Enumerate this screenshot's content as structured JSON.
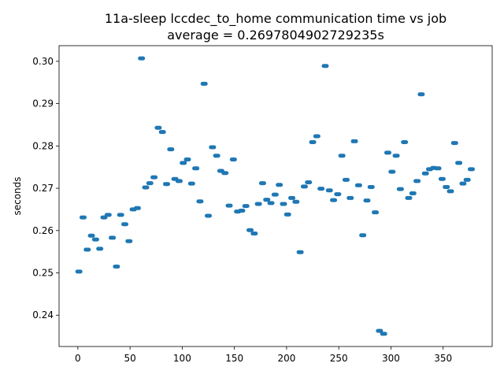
{
  "chart_data": {
    "type": "scatter",
    "title": "11a-sleep lccdec_to_home communication time vs job",
    "subtitle": "average = 0.2697804902729235s",
    "xlabel": "",
    "ylabel": "seconds",
    "xlim": [
      -18,
      397
    ],
    "ylim": [
      0.2326,
      0.3037
    ],
    "xticks": [
      0,
      50,
      100,
      150,
      200,
      250,
      300,
      350
    ],
    "yticks": [
      0.24,
      0.25,
      0.26,
      0.27,
      0.28,
      0.29,
      0.3
    ],
    "ytick_labels": [
      "0.24",
      "0.25",
      "0.26",
      "0.27",
      "0.28",
      "0.29",
      "0.30"
    ],
    "grid": false,
    "marker_color": "#1f77b4",
    "series": [
      {
        "x": [
          1,
          5,
          9,
          13,
          17,
          21,
          25,
          29,
          33,
          37,
          41,
          45,
          49,
          53,
          57,
          61,
          65,
          69,
          73,
          77,
          81,
          85,
          89,
          93,
          97,
          101,
          105,
          109,
          113,
          117,
          121,
          125,
          129,
          133,
          137,
          141,
          145,
          149,
          153,
          157,
          161,
          165,
          169,
          173,
          177,
          181,
          185,
          189,
          193,
          197,
          201,
          205,
          209,
          213,
          217,
          221,
          225,
          229,
          233,
          237,
          241,
          245,
          249,
          253,
          257,
          261,
          265,
          269,
          273,
          277,
          281,
          285,
          289,
          293,
          297,
          301,
          305,
          309,
          313,
          317,
          321,
          325,
          329,
          333,
          337,
          341,
          345,
          349,
          353,
          357,
          361,
          365,
          369,
          373,
          377
        ],
        "y": [
          0.2503,
          0.2631,
          0.2555,
          0.2588,
          0.2579,
          0.2557,
          0.2631,
          0.2637,
          0.2583,
          0.2515,
          0.2637,
          0.2615,
          0.2575,
          0.265,
          0.2653,
          0.3007,
          0.2702,
          0.2712,
          0.2726,
          0.2843,
          0.2833,
          0.271,
          0.2792,
          0.2722,
          0.2717,
          0.276,
          0.2768,
          0.2711,
          0.2747,
          0.2669,
          0.2947,
          0.2635,
          0.2797,
          0.2777,
          0.2741,
          0.2736,
          0.2659,
          0.2768,
          0.2645,
          0.2647,
          0.2658,
          0.2601,
          0.2593,
          0.2663,
          0.2712,
          0.2673,
          0.2665,
          0.2685,
          0.2708,
          0.2663,
          0.2638,
          0.2677,
          0.2668,
          0.2549,
          0.2704,
          0.2714,
          0.2809,
          0.2823,
          0.2699,
          0.2989,
          0.2695,
          0.2672,
          0.2686,
          0.2777,
          0.272,
          0.2677,
          0.2811,
          0.2707,
          0.2589,
          0.2671,
          0.2703,
          0.2643,
          0.2363,
          0.2356,
          0.2784,
          0.2739,
          0.2777,
          0.2698,
          0.2809,
          0.2677,
          0.2688,
          0.2717,
          0.2922,
          0.2735,
          0.2745,
          0.2748,
          0.2747,
          0.2722,
          0.2703,
          0.2693,
          0.2807,
          0.276,
          0.2711,
          0.272,
          0.2745
        ]
      }
    ]
  }
}
